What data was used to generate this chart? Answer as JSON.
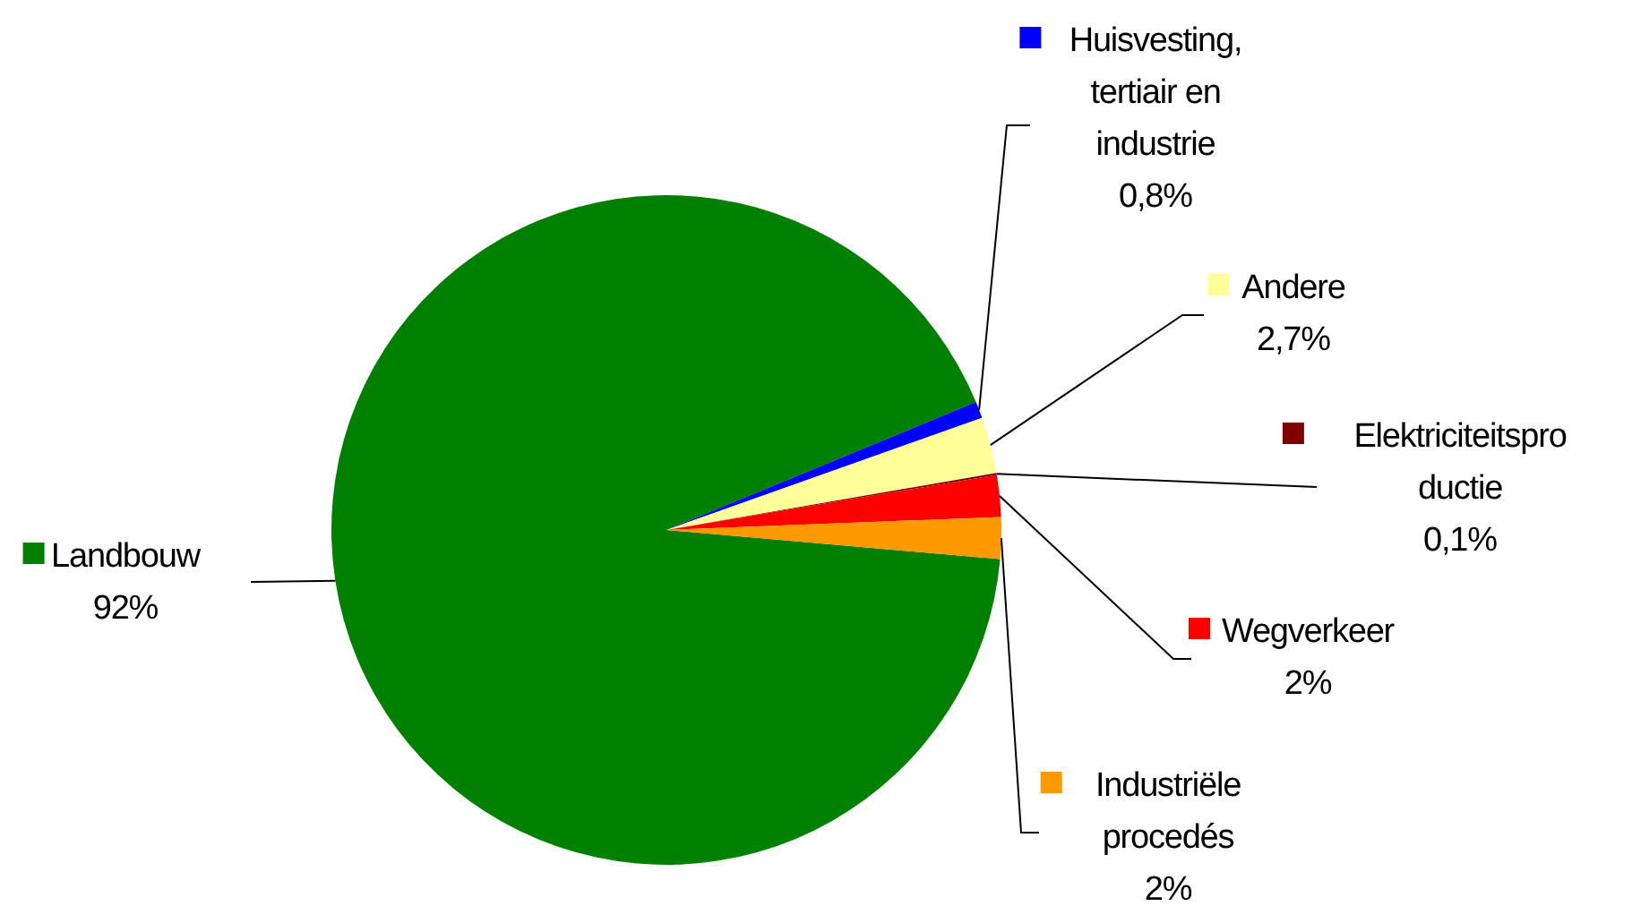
{
  "chart_data": {
    "type": "pie",
    "categories": [
      "Landbouw",
      "Huisvesting, tertiair en industrie",
      "Andere",
      "Elektriciteitsproductie",
      "Wegverkeer",
      "Industriële procedés"
    ],
    "values": [
      92,
      0.8,
      2.7,
      0.1,
      2,
      2
    ],
    "colors": [
      "#008000",
      "#0000ff",
      "#ffff99",
      "#800000",
      "#ff0000",
      "#ff9900"
    ],
    "value_labels": [
      "92%",
      "0,8%",
      "2,7%",
      "0,1%",
      "2%",
      "2%"
    ],
    "legend": "right"
  }
}
